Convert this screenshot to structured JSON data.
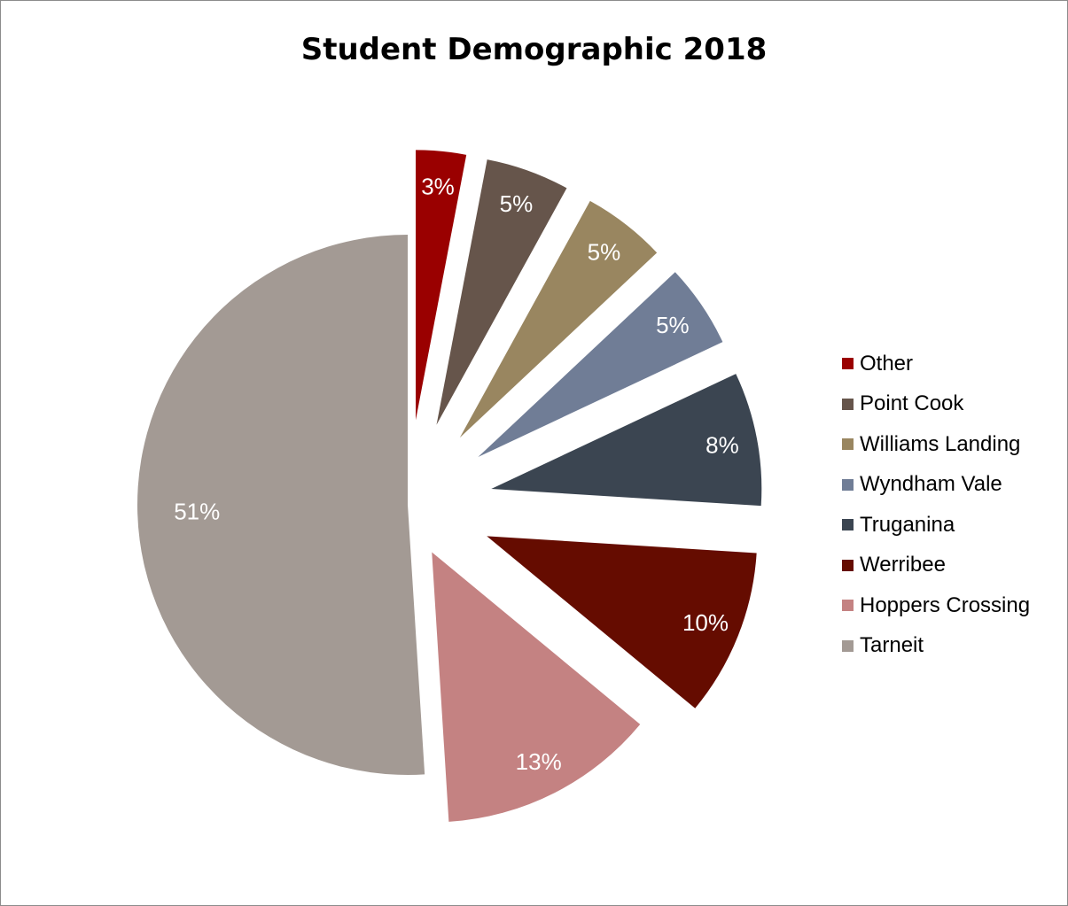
{
  "chart_data": {
    "type": "pie",
    "title": "Student Demographic 2018",
    "categories": [
      "Other",
      "Point Cook",
      "Williams Landing",
      "Wyndham Vale",
      "Truganina",
      "Werribee",
      "Hoppers Crossing",
      "Tarneit"
    ],
    "values": [
      3,
      5,
      5,
      5,
      8,
      10,
      13,
      51
    ],
    "labels": [
      "3%",
      "5%",
      "5%",
      "5%",
      "8%",
      "10%",
      "13%",
      "51%"
    ],
    "colors": [
      "#9a0000",
      "#66554b",
      "#998660",
      "#707d96",
      "#3b4551",
      "#650c00",
      "#c48282",
      "#a39a94"
    ],
    "legend_position": "right",
    "exploded": true
  }
}
